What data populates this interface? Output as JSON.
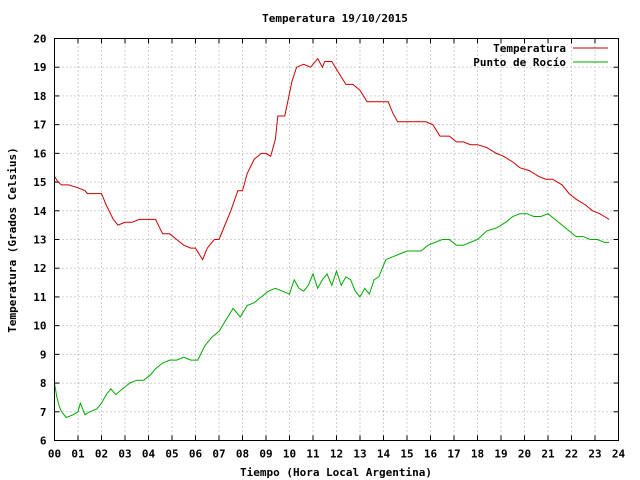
{
  "chart_data": {
    "type": "line",
    "title": "Temperatura 19/10/2015",
    "xlabel": "Tiempo (Hora Local Argentina)",
    "ylabel": "Temperatura (Grados Celsius)",
    "xlim": [
      0,
      24
    ],
    "ylim": [
      6,
      20
    ],
    "x_ticks": [
      "00",
      "01",
      "02",
      "03",
      "04",
      "05",
      "06",
      "07",
      "08",
      "09",
      "10",
      "11",
      "12",
      "13",
      "14",
      "15",
      "16",
      "17",
      "18",
      "19",
      "20",
      "21",
      "22",
      "23",
      "24"
    ],
    "y_ticks": [
      6,
      7,
      8,
      9,
      10,
      11,
      12,
      13,
      14,
      15,
      16,
      17,
      18,
      19,
      20
    ],
    "grid": true,
    "legend_position": "top-right",
    "series": [
      {
        "name": "Temperatura",
        "color": "#cc0000",
        "x": [
          0.0,
          0.15,
          0.3,
          0.6,
          1.0,
          1.3,
          1.4,
          1.6,
          2.0,
          2.2,
          2.5,
          2.7,
          3.0,
          3.3,
          3.6,
          4.0,
          4.3,
          4.6,
          4.9,
          5.2,
          5.5,
          5.8,
          6.0,
          6.15,
          6.3,
          6.5,
          6.8,
          7.0,
          7.2,
          7.5,
          7.8,
          8.0,
          8.2,
          8.5,
          8.8,
          9.0,
          9.2,
          9.4,
          9.5,
          9.8,
          10.1,
          10.3,
          10.6,
          10.9,
          11.0,
          11.2,
          11.4,
          11.5,
          11.8,
          12.1,
          12.4,
          12.7,
          13.0,
          13.3,
          13.6,
          13.9,
          14.2,
          14.4,
          14.6,
          15.0,
          15.4,
          15.8,
          16.1,
          16.4,
          16.8,
          17.1,
          17.4,
          17.7,
          18.0,
          18.4,
          18.8,
          19.1,
          19.5,
          19.8,
          20.2,
          20.6,
          20.9,
          21.2,
          21.6,
          21.9,
          22.2,
          22.6,
          22.9,
          23.2,
          23.4,
          23.6
        ],
        "y": [
          15.2,
          15.0,
          14.9,
          14.9,
          14.8,
          14.7,
          14.6,
          14.6,
          14.6,
          14.2,
          13.7,
          13.5,
          13.6,
          13.6,
          13.7,
          13.7,
          13.7,
          13.2,
          13.2,
          13.0,
          12.8,
          12.7,
          12.7,
          12.5,
          12.3,
          12.7,
          13.0,
          13.0,
          13.4,
          14.0,
          14.7,
          14.7,
          15.3,
          15.8,
          16.0,
          16.0,
          15.9,
          16.5,
          17.3,
          17.3,
          18.5,
          19.0,
          19.1,
          19.0,
          19.1,
          19.3,
          19.0,
          19.2,
          19.2,
          18.8,
          18.4,
          18.4,
          18.2,
          17.8,
          17.8,
          17.8,
          17.8,
          17.4,
          17.1,
          17.1,
          17.1,
          17.1,
          17.0,
          16.6,
          16.6,
          16.4,
          16.4,
          16.3,
          16.3,
          16.2,
          16.0,
          15.9,
          15.7,
          15.5,
          15.4,
          15.2,
          15.1,
          15.1,
          14.9,
          14.6,
          14.4,
          14.2,
          14.0,
          13.9,
          13.8,
          13.7
        ]
      },
      {
        "name": "Punto de Rocío",
        "color": "#00aa00",
        "x": [
          0.0,
          0.1,
          0.2,
          0.3,
          0.5,
          0.8,
          1.0,
          1.1,
          1.3,
          1.5,
          1.8,
          2.0,
          2.2,
          2.4,
          2.6,
          2.9,
          3.2,
          3.5,
          3.8,
          4.1,
          4.3,
          4.6,
          4.9,
          5.2,
          5.5,
          5.8,
          6.1,
          6.4,
          6.7,
          7.0,
          7.3,
          7.6,
          7.9,
          8.2,
          8.5,
          8.8,
          9.1,
          9.4,
          9.7,
          10.0,
          10.2,
          10.4,
          10.6,
          10.8,
          11.0,
          11.2,
          11.4,
          11.6,
          11.8,
          12.0,
          12.2,
          12.4,
          12.6,
          12.8,
          13.0,
          13.2,
          13.4,
          13.6,
          13.8,
          14.1,
          14.4,
          14.7,
          15.0,
          15.3,
          15.6,
          15.9,
          16.2,
          16.5,
          16.8,
          17.1,
          17.4,
          17.7,
          18.0,
          18.4,
          18.8,
          19.2,
          19.5,
          19.8,
          20.1,
          20.4,
          20.7,
          21.0,
          21.3,
          21.6,
          21.9,
          22.2,
          22.5,
          22.8,
          23.1,
          23.4,
          23.6
        ],
        "y": [
          8.0,
          7.5,
          7.2,
          7.0,
          6.8,
          6.9,
          7.0,
          7.3,
          6.9,
          7.0,
          7.1,
          7.3,
          7.6,
          7.8,
          7.6,
          7.8,
          8.0,
          8.1,
          8.1,
          8.3,
          8.5,
          8.7,
          8.8,
          8.8,
          8.9,
          8.8,
          8.8,
          9.3,
          9.6,
          9.8,
          10.2,
          10.6,
          10.3,
          10.7,
          10.8,
          11.0,
          11.2,
          11.3,
          11.2,
          11.1,
          11.6,
          11.3,
          11.2,
          11.4,
          11.8,
          11.3,
          11.6,
          11.8,
          11.4,
          11.9,
          11.4,
          11.7,
          11.6,
          11.2,
          11.0,
          11.3,
          11.1,
          11.6,
          11.7,
          12.3,
          12.4,
          12.5,
          12.6,
          12.6,
          12.6,
          12.8,
          12.9,
          13.0,
          13.0,
          12.8,
          12.8,
          12.9,
          13.0,
          13.3,
          13.4,
          13.6,
          13.8,
          13.9,
          13.9,
          13.8,
          13.8,
          13.9,
          13.7,
          13.5,
          13.3,
          13.1,
          13.1,
          13.0,
          13.0,
          12.9,
          12.9
        ]
      }
    ]
  }
}
